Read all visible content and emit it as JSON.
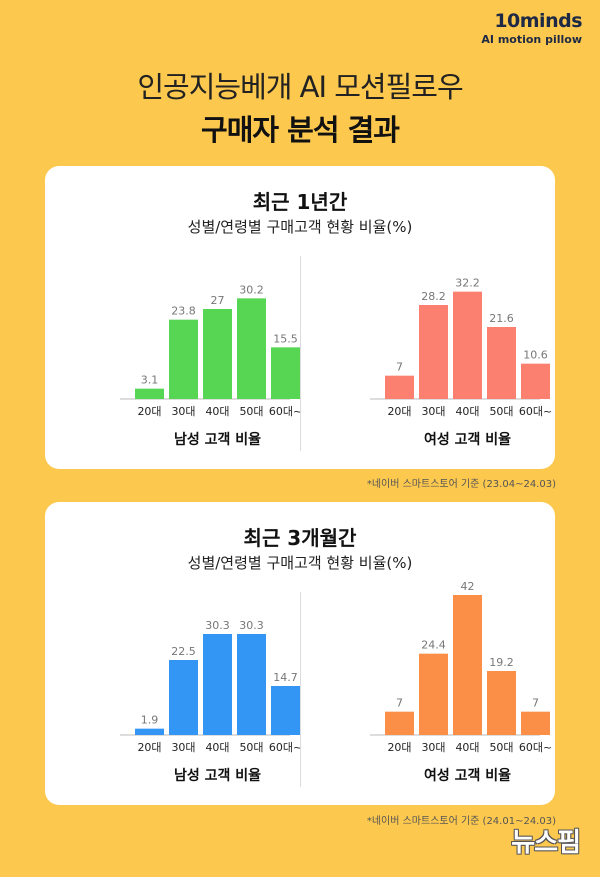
{
  "logo": {
    "wordmark": "10minds",
    "tagline": "AI motion pillow"
  },
  "header": {
    "line1": "인공지능베개 AI 모션필로우",
    "line2": "구매자 분석 결과"
  },
  "sections": [
    {
      "title": "최근 1년간",
      "subtitle": "성별/연령별 구매고객 현황 비율(%)",
      "source": "*네이버 스마트스토어 기준 (23.04~24.03)"
    },
    {
      "title": "최근 3개월간",
      "subtitle": "성별/연령별 구매고객 현황 비율(%)",
      "source": "*네이버 스마트스토어 기준 (24.01~24.03)"
    }
  ],
  "watermark": "뉴스핌",
  "chart_data": [
    {
      "type": "bar",
      "title": "남성 고객 비율",
      "categories": [
        "20대",
        "30대",
        "40대",
        "50대",
        "60대~"
      ],
      "values": [
        3.1,
        23.8,
        27,
        30.2,
        15.5
      ],
      "color": "#57d654",
      "ylim": [
        0,
        42
      ]
    },
    {
      "type": "bar",
      "title": "여성 고객 비율",
      "categories": [
        "20대",
        "30대",
        "40대",
        "50대",
        "60대~"
      ],
      "values": [
        7,
        28.2,
        32.2,
        21.6,
        10.6
      ],
      "color": "#fb8070",
      "ylim": [
        0,
        42
      ]
    },
    {
      "type": "bar",
      "title": "남성 고객 비율",
      "categories": [
        "20대",
        "30대",
        "40대",
        "50대",
        "60대~"
      ],
      "values": [
        1.9,
        22.5,
        30.3,
        30.3,
        14.7
      ],
      "color": "#3396f5",
      "ylim": [
        0,
        42
      ]
    },
    {
      "type": "bar",
      "title": "여성 고객 비율",
      "categories": [
        "20대",
        "30대",
        "40대",
        "50대",
        "60대~"
      ],
      "values": [
        7,
        24.4,
        42,
        19.2,
        7
      ],
      "color": "#fb8f48",
      "ylim": [
        0,
        42
      ]
    }
  ]
}
